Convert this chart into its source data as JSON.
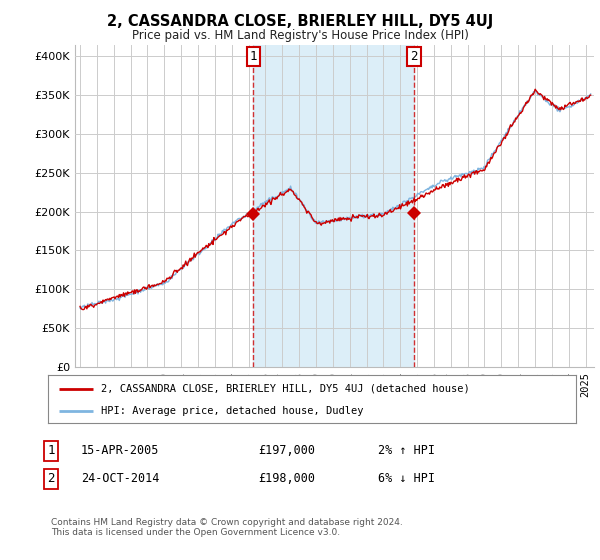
{
  "title": "2, CASSANDRA CLOSE, BRIERLEY HILL, DY5 4UJ",
  "subtitle": "Price paid vs. HM Land Registry's House Price Index (HPI)",
  "ylabel_ticks": [
    "£0",
    "£50K",
    "£100K",
    "£150K",
    "£200K",
    "£250K",
    "£300K",
    "£350K",
    "£400K"
  ],
  "ytick_values": [
    0,
    50000,
    100000,
    150000,
    200000,
    250000,
    300000,
    350000,
    400000
  ],
  "ylim": [
    0,
    415000
  ],
  "hpi_color": "#7fb5e0",
  "hpi_fill_color": "#dceef8",
  "price_color": "#cc0000",
  "marker_color": "#cc0000",
  "vline_color": "#cc0000",
  "bg_color": "#ffffff",
  "grid_color": "#cccccc",
  "transaction1": {
    "date": "15-APR-2005",
    "price": 197000,
    "label": "1",
    "year": 2005.29
  },
  "transaction2": {
    "date": "24-OCT-2014",
    "price": 198000,
    "label": "2",
    "year": 2014.81
  },
  "legend_line1": "2, CASSANDRA CLOSE, BRIERLEY HILL, DY5 4UJ (detached house)",
  "legend_line2": "HPI: Average price, detached house, Dudley",
  "footnote": "Contains HM Land Registry data © Crown copyright and database right 2024.\nThis data is licensed under the Open Government Licence v3.0.",
  "table_row1": [
    "1",
    "15-APR-2005",
    "£197,000",
    "2% ↑ HPI"
  ],
  "table_row2": [
    "2",
    "24-OCT-2014",
    "£198,000",
    "6% ↓ HPI"
  ],
  "seed": 42,
  "n_points": 600
}
